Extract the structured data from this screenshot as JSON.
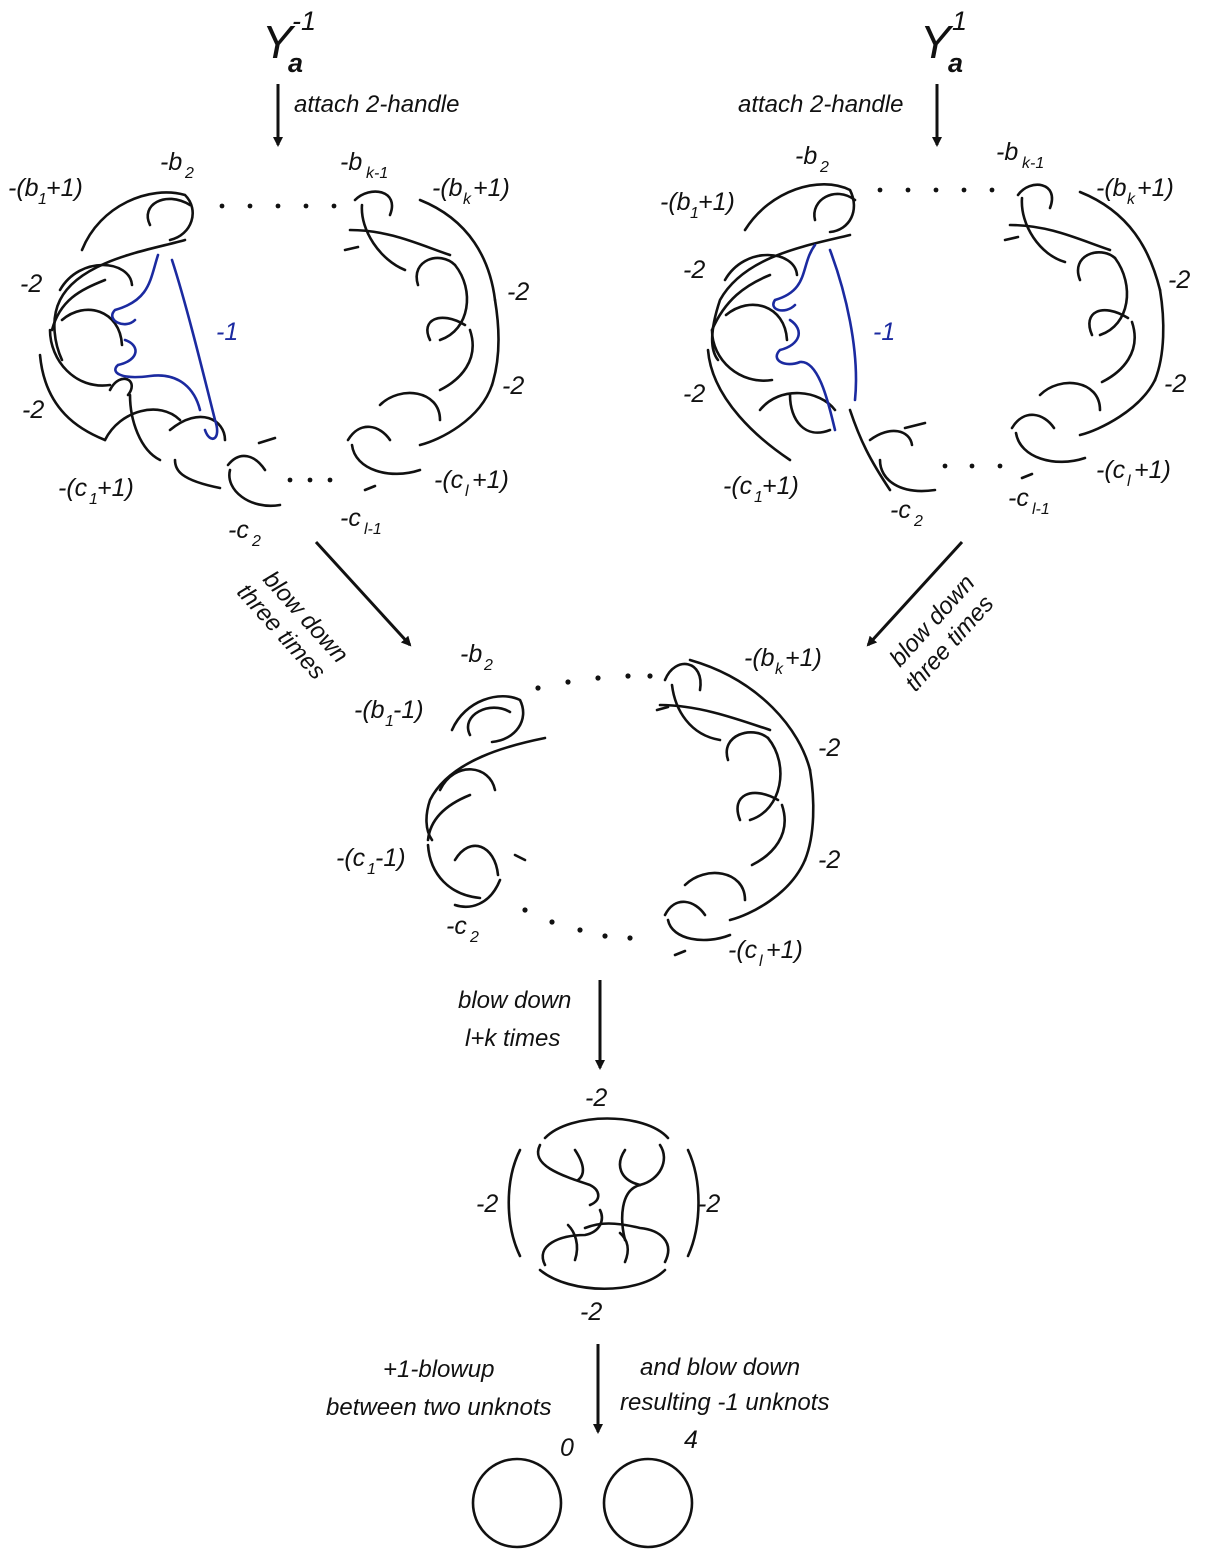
{
  "title_left": {
    "main": "Y",
    "sub": "a",
    "sup": "-1"
  },
  "title_right": {
    "main": "Y",
    "sub": "a",
    "sup": "1"
  },
  "arrows": {
    "left_top": "attach 2-handle",
    "right_top": "attach 2-handle",
    "left_diag_1": "blow down",
    "left_diag_2": "three times",
    "right_diag_1": "blow down",
    "right_diag_2": "three times",
    "middle_1": "blow down",
    "middle_2": "l+k times",
    "bottom_left_1": "+1-blowup",
    "bottom_left_2": "between two unknots",
    "bottom_right_1": "and blow down",
    "bottom_right_2": "resulting -1 unknots"
  },
  "left_diagram": {
    "b2": {
      "pre": "-b",
      "sub": "2"
    },
    "bk1": {
      "pre": "-b",
      "sub": "k-1"
    },
    "b1": {
      "pre": "-(b",
      "sub": "1",
      "post": "+1)"
    },
    "bk": {
      "pre": "-(b",
      "sub": "k",
      "post": "+1)"
    },
    "m2a": "-2",
    "m2b": "-2",
    "r2a": "-2",
    "r2b": "-2",
    "blue": "-1",
    "c1": {
      "pre": "-(c",
      "sub": "1",
      "post": "+1)"
    },
    "cl": {
      "pre": "-(c",
      "sub": "l",
      "post": "+1)"
    },
    "c2": {
      "pre": "-c",
      "sub": "2"
    },
    "cl1": {
      "pre": "-c",
      "sub": "l-1"
    }
  },
  "right_diagram": {
    "b2": {
      "pre": "-b",
      "sub": "2"
    },
    "bk1": {
      "pre": "-b",
      "sub": "k-1"
    },
    "b1": {
      "pre": "-(b",
      "sub": "1",
      "post": "+1)"
    },
    "bk": {
      "pre": "-(b",
      "sub": "k",
      "post": "+1)"
    },
    "m2a": "-2",
    "m2b": "-2",
    "r2a": "-2",
    "r2b": "-2",
    "blue": "-1",
    "c1": {
      "pre": "-(c",
      "sub": "1",
      "post": "+1)"
    },
    "cl": {
      "pre": "-(c",
      "sub": "l",
      "post": "+1)"
    },
    "c2": {
      "pre": "-c",
      "sub": "2"
    },
    "cl1": {
      "pre": "-c",
      "sub": "l-1"
    }
  },
  "middle_diagram": {
    "b2": {
      "pre": "-b",
      "sub": "2"
    },
    "b1": {
      "pre": "-(b",
      "sub": "1",
      "post": "-1)"
    },
    "bk": {
      "pre": "-(b",
      "sub": "k",
      "post": "+1)"
    },
    "r2a": "-2",
    "r2b": "-2",
    "c1": {
      "pre": "-(c",
      "sub": "1",
      "post": "-1)"
    },
    "c2": {
      "pre": "-c",
      "sub": "2"
    },
    "cl": {
      "pre": "-(c",
      "sub": "l",
      "post": "+1)"
    }
  },
  "square_diagram": {
    "top": "-2",
    "left": "-2",
    "right": "-2",
    "bottom": "-2"
  },
  "unknots": {
    "first": "0",
    "second": "4"
  }
}
